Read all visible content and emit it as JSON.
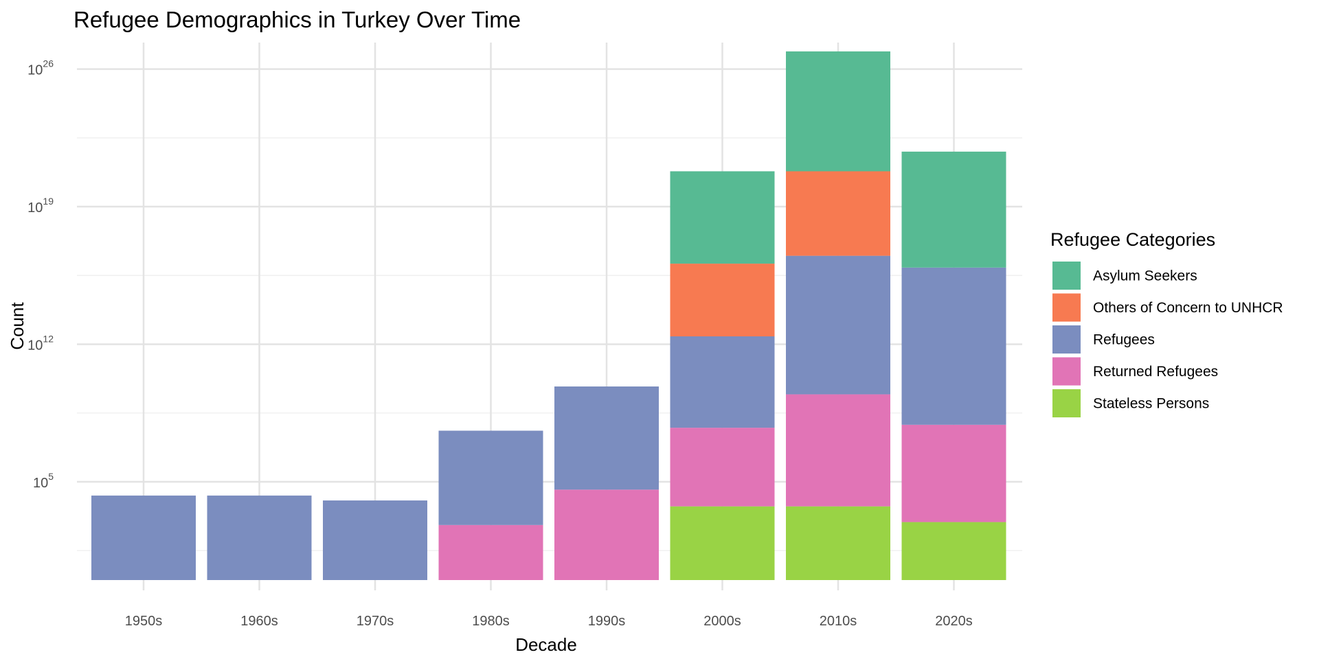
{
  "chart_data": {
    "type": "bar",
    "stacked": true,
    "title": "Refugee Demographics in Turkey Over Time",
    "xlabel": "Decade",
    "ylabel": "Count",
    "y_scale": "log10",
    "ylim_log10": [
      0,
      27
    ],
    "y_ticks": [
      {
        "base": "10",
        "exp": "5",
        "log10": 5
      },
      {
        "base": "10",
        "exp": "12",
        "log10": 12
      },
      {
        "base": "10",
        "exp": "19",
        "log10": 19
      },
      {
        "base": "10",
        "exp": "26",
        "log10": 26
      }
    ],
    "categories": [
      "1950s",
      "1960s",
      "1970s",
      "1980s",
      "1990s",
      "2000s",
      "2010s",
      "2020s"
    ],
    "legend_title": "Refugee Categories",
    "legend_position": "right",
    "grid": true,
    "series": [
      {
        "name": "Asylum Seekers",
        "color": "#57BA93",
        "cumulative_log10": [
          null,
          null,
          null,
          null,
          null,
          20.8,
          26.9,
          21.8
        ]
      },
      {
        "name": "Others of Concern to UNHCR",
        "color": "#F77A51",
        "cumulative_log10": [
          null,
          null,
          null,
          null,
          null,
          16.1,
          20.8,
          null
        ]
      },
      {
        "name": "Refugees",
        "color": "#7B8DBF",
        "cumulative_log10": [
          4.3,
          4.3,
          4.05,
          7.6,
          9.85,
          12.4,
          16.5,
          15.9
        ]
      },
      {
        "name": "Returned Refugees",
        "color": "#E174B6",
        "cumulative_log10": [
          null,
          null,
          null,
          2.8,
          4.6,
          7.75,
          9.45,
          7.9
        ]
      },
      {
        "name": "Stateless Persons",
        "color": "#99D345",
        "cumulative_log10": [
          null,
          null,
          null,
          null,
          null,
          3.75,
          3.75,
          2.95
        ]
      }
    ]
  }
}
